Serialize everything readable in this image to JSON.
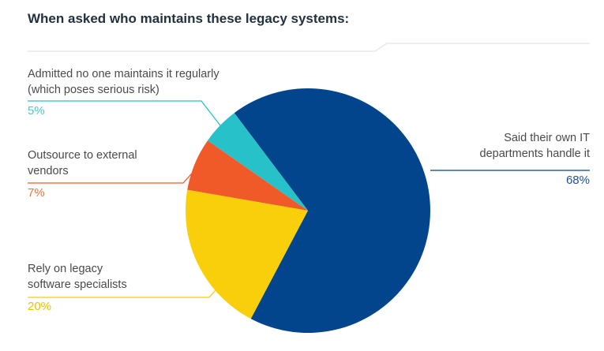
{
  "chart_data": {
    "type": "pie",
    "title": "When asked who maintains these legacy systems:",
    "slices": [
      {
        "label_lines": [
          "Said their own IT",
          "departments handle it"
        ],
        "value": 68,
        "display": "68%",
        "color": "#03458c",
        "text_color": "#1f4f8f"
      },
      {
        "label_lines": [
          "Rely on legacy",
          "software specialists"
        ],
        "value": 20,
        "display": "20%",
        "color": "#f8cf0a",
        "text_color": "#e8c200"
      },
      {
        "label_lines": [
          "Outsource to external",
          "vendors"
        ],
        "value": 7,
        "display": "7%",
        "color": "#f05a28",
        "text_color": "#e8743e"
      },
      {
        "label_lines": [
          "Admitted no one maintains it regularly",
          "(which poses serious risk)"
        ],
        "value": 5,
        "display": "5%",
        "color": "#27c1c9",
        "text_color": "#4cc7cb"
      }
    ]
  }
}
